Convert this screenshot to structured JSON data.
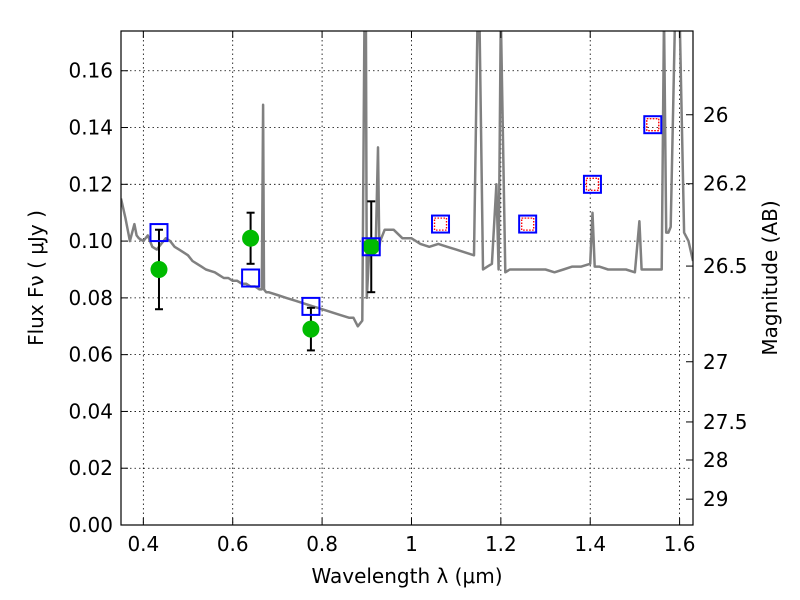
{
  "chart_data": {
    "type": "scatter",
    "title": "",
    "xlabel": "Wavelength  λ (μm)",
    "ylabel": "Flux  Fν  ( μJy )",
    "ylabel_right": "Magnitude (AB)",
    "xlim": [
      0.35,
      1.63
    ],
    "ylim": [
      0.0,
      0.174
    ],
    "grid": true,
    "x_ticks": [
      0.4,
      0.6,
      0.8,
      1.0,
      1.2,
      1.4,
      1.6
    ],
    "x_tick_labels": [
      "0.4",
      "0.6",
      "0.8",
      "1",
      "1.2",
      "1.4",
      "1.6"
    ],
    "y_ticks": [
      0.0,
      0.02,
      0.04,
      0.06,
      0.08,
      0.1,
      0.12,
      0.14,
      0.16
    ],
    "y_tick_labels": [
      "0.00",
      "0.02",
      "0.04",
      "0.06",
      "0.08",
      "0.10",
      "0.12",
      "0.14",
      "0.16"
    ],
    "right_ticks": [
      {
        "label": "26",
        "flux": 0.1445
      },
      {
        "label": "26.2",
        "flux": 0.1202
      },
      {
        "label": "26.5",
        "flux": 0.0912
      },
      {
        "label": "27",
        "flux": 0.0575
      },
      {
        "label": "27.5",
        "flux": 0.0363
      },
      {
        "label": "28",
        "flux": 0.0229
      },
      {
        "label": "29",
        "flux": 0.0091
      }
    ],
    "series": [
      {
        "kind": "spectrum",
        "color": "#808080",
        "x": [
          0.35,
          0.36,
          0.37,
          0.38,
          0.385,
          0.39,
          0.4,
          0.41,
          0.42,
          0.43,
          0.44,
          0.45,
          0.46,
          0.47,
          0.48,
          0.49,
          0.5,
          0.51,
          0.52,
          0.53,
          0.54,
          0.55,
          0.56,
          0.57,
          0.58,
          0.59,
          0.6,
          0.61,
          0.62,
          0.63,
          0.64,
          0.65,
          0.66,
          0.665,
          0.668,
          0.67,
          0.675,
          0.68,
          0.7,
          0.72,
          0.74,
          0.76,
          0.78,
          0.8,
          0.82,
          0.84,
          0.86,
          0.87,
          0.88,
          0.89,
          0.895,
          0.898,
          0.9,
          0.905,
          0.91,
          0.92,
          0.925,
          0.928,
          0.93,
          0.94,
          0.96,
          0.98,
          1.0,
          1.02,
          1.04,
          1.06,
          1.08,
          1.1,
          1.12,
          1.14,
          1.148,
          1.152,
          1.16,
          1.17,
          1.18,
          1.19,
          1.195,
          1.2,
          1.21,
          1.22,
          1.24,
          1.26,
          1.28,
          1.3,
          1.32,
          1.34,
          1.36,
          1.38,
          1.4,
          1.405,
          1.41,
          1.42,
          1.44,
          1.46,
          1.48,
          1.5,
          1.51,
          1.515,
          1.52,
          1.54,
          1.56,
          1.565,
          1.57,
          1.575,
          1.58,
          1.59,
          1.6,
          1.61,
          1.62,
          1.63
        ],
        "y": [
          0.115,
          0.108,
          0.1,
          0.106,
          0.102,
          0.101,
          0.1,
          0.102,
          0.098,
          0.097,
          0.099,
          0.101,
          0.1,
          0.098,
          0.097,
          0.096,
          0.095,
          0.093,
          0.092,
          0.091,
          0.09,
          0.0895,
          0.089,
          0.088,
          0.087,
          0.087,
          0.086,
          0.086,
          0.085,
          0.085,
          0.084,
          0.084,
          0.083,
          0.083,
          0.148,
          0.083,
          0.082,
          0.082,
          0.081,
          0.08,
          0.079,
          0.078,
          0.077,
          0.076,
          0.075,
          0.074,
          0.073,
          0.073,
          0.07,
          0.072,
          0.18,
          0.18,
          0.08,
          0.095,
          0.097,
          0.098,
          0.133,
          0.098,
          0.1,
          0.104,
          0.104,
          0.101,
          0.101,
          0.099,
          0.098,
          0.099,
          0.098,
          0.097,
          0.096,
          0.095,
          0.18,
          0.18,
          0.09,
          0.091,
          0.092,
          0.12,
          0.09,
          0.18,
          0.089,
          0.09,
          0.09,
          0.09,
          0.09,
          0.09,
          0.089,
          0.09,
          0.091,
          0.091,
          0.092,
          0.11,
          0.091,
          0.091,
          0.09,
          0.09,
          0.09,
          0.089,
          0.107,
          0.09,
          0.09,
          0.09,
          0.09,
          0.18,
          0.103,
          0.103,
          0.105,
          0.18,
          0.18,
          0.103,
          0.1,
          0.093
        ]
      },
      {
        "kind": "model_photometry",
        "color": "#0000ff",
        "marker": "open-square",
        "x": [
          0.435,
          0.64,
          0.775,
          0.91,
          1.065,
          1.26,
          1.405,
          1.54
        ],
        "y": [
          0.103,
          0.087,
          0.077,
          0.098,
          0.106,
          0.106,
          0.12,
          0.141
        ]
      },
      {
        "kind": "observed_detection",
        "color": "#00bb00",
        "marker": "filled-circle",
        "x": [
          0.435,
          0.64,
          0.775,
          0.91
        ],
        "y": [
          0.09,
          0.101,
          0.069,
          0.098
        ],
        "yerr": [
          0.014,
          0.009,
          0.0075,
          0.016
        ]
      },
      {
        "kind": "observed_limit",
        "color": "#ff0000",
        "marker": "dotted-square",
        "x": [
          1.065,
          1.26,
          1.405,
          1.54
        ],
        "y": [
          0.106,
          0.106,
          0.12,
          0.141
        ]
      }
    ]
  }
}
